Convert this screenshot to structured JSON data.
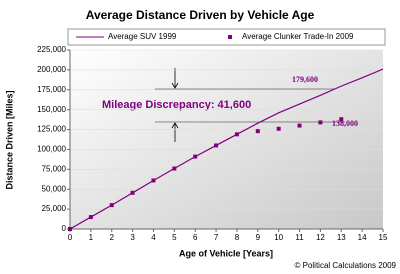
{
  "chart_data": {
    "type": "line",
    "title": "Average Distance Driven by Vehicle Age",
    "x_label": "Age of Vehicle [Years]",
    "y_label": "Distance Driven [Miles]",
    "series": [
      {
        "name": "Average SUV 1999",
        "type": "line",
        "color": "#800080",
        "x": [
          0,
          1,
          2,
          3,
          4,
          5,
          6,
          7,
          8,
          9,
          10,
          11,
          12,
          13,
          14,
          15
        ],
        "values": [
          0,
          15000,
          30000,
          45500,
          61000,
          76000,
          91000,
          105000,
          119000,
          133000,
          146000,
          157000,
          168000,
          179600,
          190000,
          201000
        ]
      },
      {
        "name": "Average Clunker Trade-In 2009",
        "type": "scatter",
        "color": "#800080",
        "x": [
          0,
          1,
          2,
          3,
          4,
          5,
          6,
          7,
          8,
          9,
          10,
          11,
          12,
          13
        ],
        "values": [
          0,
          15000,
          30000,
          45500,
          61000,
          76000,
          91000,
          105000,
          119000,
          123000,
          126000,
          130000,
          134000,
          138000
        ]
      }
    ],
    "annotations": [
      "179,600",
      "138,000",
      "Mileage Discrepancy: 41,600"
    ],
    "copyright": "© Political Calculations 2009",
    "xlim": [
      0,
      15
    ],
    "xticks": [
      0,
      1,
      2,
      3,
      4,
      5,
      6,
      7,
      8,
      9,
      10,
      11,
      12,
      13,
      14,
      15
    ],
    "ylim": [
      0,
      225000
    ],
    "yticks": [
      {
        "value": 0,
        "label": "0"
      },
      {
        "value": 25000,
        "label": "25,000"
      },
      {
        "value": 50000,
        "label": "50,000"
      },
      {
        "value": 75000,
        "label": "75,000"
      },
      {
        "value": 100000,
        "label": "100,000"
      },
      {
        "value": 125000,
        "label": "125,000"
      },
      {
        "value": 150000,
        "label": "150,000"
      },
      {
        "value": 175000,
        "label": "175,000"
      },
      {
        "value": 200000,
        "label": "200,000"
      },
      {
        "value": 225000,
        "label": "225,000"
      }
    ],
    "grid": true
  }
}
